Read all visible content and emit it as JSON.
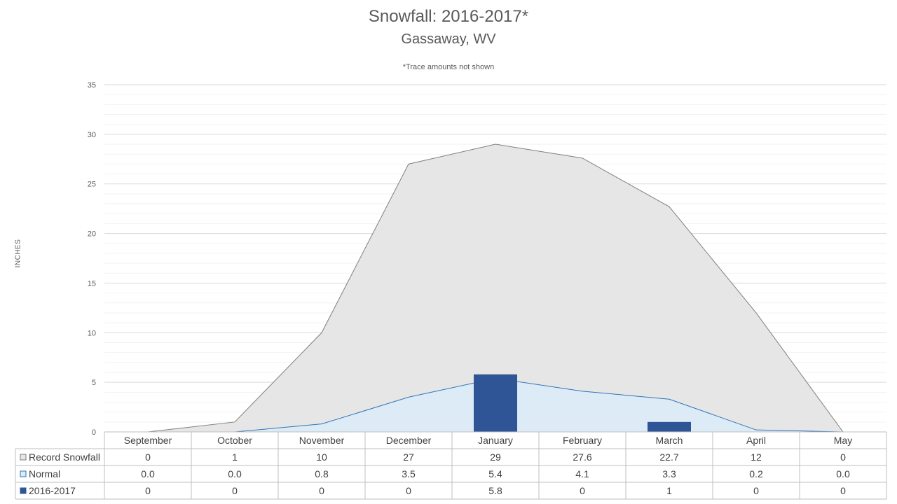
{
  "chart_data": {
    "type": "area",
    "title": "Snowfall: 2016-2017*",
    "subtitle": "Gassaway, WV",
    "note": "*Trace amounts not shown",
    "ylabel": "INCHES",
    "ylim": [
      0,
      35
    ],
    "yticks": [
      0,
      5,
      10,
      15,
      20,
      25,
      30,
      35
    ],
    "grid": true,
    "categories": [
      "September",
      "October",
      "November",
      "December",
      "January",
      "February",
      "March",
      "April",
      "May"
    ],
    "series": [
      {
        "name": "Record Snowfall",
        "kind": "area",
        "color": "#e7e6e6",
        "stroke": "#7f7f7f",
        "values": [
          0,
          1,
          10,
          27,
          29,
          27.6,
          22.7,
          12,
          0
        ],
        "labels": [
          "0",
          "1",
          "10",
          "27",
          "29",
          "27.6",
          "22.7",
          "12",
          "0"
        ]
      },
      {
        "name": "Normal",
        "kind": "area",
        "color": "#ddebf7",
        "stroke": "#2e75b6",
        "values": [
          0.0,
          0.0,
          0.8,
          3.5,
          5.4,
          4.1,
          3.3,
          0.2,
          0.0
        ],
        "labels": [
          "0.0",
          "0.0",
          "0.8",
          "3.5",
          "5.4",
          "4.1",
          "3.3",
          "0.2",
          "0.0"
        ]
      },
      {
        "name": "2016-2017",
        "kind": "bar",
        "color": "#2f5597",
        "values": [
          0,
          0,
          0,
          0,
          5.8,
          0,
          1,
          0,
          0
        ],
        "labels": [
          "0",
          "0",
          "0",
          "0",
          "5.8",
          "0",
          "1",
          "0",
          "0"
        ]
      }
    ]
  }
}
